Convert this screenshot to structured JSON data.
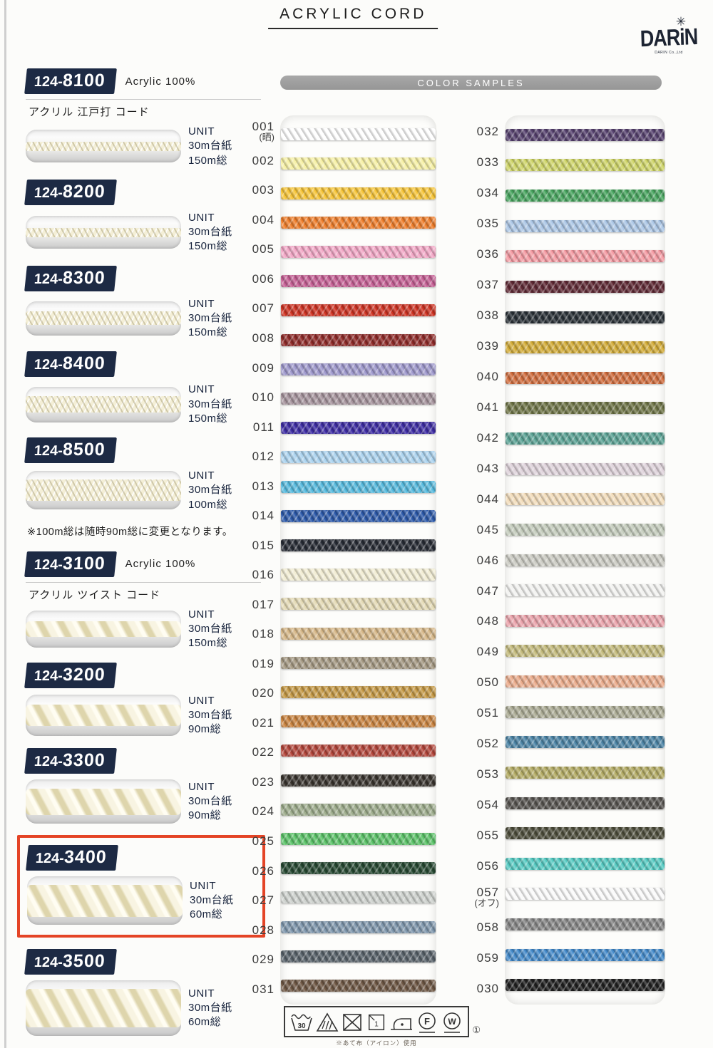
{
  "header": {
    "title": "ACRYLIC CORD",
    "logo_text": "DARiN",
    "logo_subtext": "DARIN Co.,Ltd",
    "logo_star": "✳"
  },
  "color_samples_bar": "COLOR SAMPLES",
  "note_between_groups": "※100m総は随時90m総に変更となります。",
  "products_group_a": [
    {
      "code_prefix": "124-",
      "code_main": "8100",
      "material": "Acrylic 100%",
      "subtitle": "アクリル 江戸打 コード",
      "unit_label": "UNIT",
      "unit_line1": "30m台紙",
      "unit_line2": "150m総",
      "cord_style": "braided b1",
      "highlighted": false
    },
    {
      "code_prefix": "124-",
      "code_main": "8200",
      "unit_label": "UNIT",
      "unit_line1": "30m台紙",
      "unit_line2": "150m総",
      "cord_style": "braided b1",
      "highlighted": false
    },
    {
      "code_prefix": "124-",
      "code_main": "8300",
      "unit_label": "UNIT",
      "unit_line1": "30m台紙",
      "unit_line2": "150m総",
      "cord_style": "braided b2",
      "highlighted": false
    },
    {
      "code_prefix": "124-",
      "code_main": "8400",
      "unit_label": "UNIT",
      "unit_line1": "30m台紙",
      "unit_line2": "150m総",
      "cord_style": "braided b3",
      "highlighted": false
    },
    {
      "code_prefix": "124-",
      "code_main": "8500",
      "unit_label": "UNIT",
      "unit_line1": "30m台紙",
      "unit_line2": "100m総",
      "cord_style": "braided b4",
      "highlighted": false
    }
  ],
  "products_group_b": [
    {
      "code_prefix": "124-",
      "code_main": "3100",
      "material": "Acrylic 100%",
      "subtitle": "アクリル ツイスト コード",
      "unit_label": "UNIT",
      "unit_line1": "30m台紙",
      "unit_line2": "150m総",
      "cord_style": "twisted t1",
      "highlighted": false
    },
    {
      "code_prefix": "124-",
      "code_main": "3200",
      "unit_label": "UNIT",
      "unit_line1": "30m台紙",
      "unit_line2": "90m総",
      "cord_style": "twisted t2",
      "highlighted": false
    },
    {
      "code_prefix": "124-",
      "code_main": "3300",
      "unit_label": "UNIT",
      "unit_line1": "30m台紙",
      "unit_line2": "90m総",
      "cord_style": "twisted t3",
      "highlighted": false
    },
    {
      "code_prefix": "124-",
      "code_main": "3400",
      "unit_label": "UNIT",
      "unit_line1": "30m台紙",
      "unit_line2": "60m総",
      "cord_style": "twisted t4",
      "highlighted": true
    },
    {
      "code_prefix": "124-",
      "code_main": "3500",
      "unit_label": "UNIT",
      "unit_line1": "30m台紙",
      "unit_line2": "60m総",
      "cord_style": "twisted t5",
      "highlighted": false
    }
  ],
  "color_samples_left": [
    {
      "label": "001",
      "note": "(晒)",
      "color": "#ffffff"
    },
    {
      "label": "002",
      "color": "#f6f0a4"
    },
    {
      "label": "003",
      "color": "#f6c437"
    },
    {
      "label": "004",
      "color": "#ee7d2a"
    },
    {
      "label": "005",
      "color": "#f2a6c5"
    },
    {
      "label": "006",
      "color": "#c45e93"
    },
    {
      "label": "007",
      "color": "#cd3222"
    },
    {
      "label": "008",
      "color": "#8e2a28"
    },
    {
      "label": "009",
      "color": "#9d97cb"
    },
    {
      "label": "010",
      "color": "#a4929b"
    },
    {
      "label": "011",
      "color": "#3c2ba2"
    },
    {
      "label": "012",
      "color": "#aad2ee"
    },
    {
      "label": "013",
      "color": "#55b9dd"
    },
    {
      "label": "014",
      "color": "#2b58a8"
    },
    {
      "label": "015",
      "color": "#262a33"
    },
    {
      "label": "016",
      "color": "#f1ecd2"
    },
    {
      "label": "017",
      "color": "#e3d9b4"
    },
    {
      "label": "018",
      "color": "#d5b687"
    },
    {
      "label": "019",
      "color": "#a39781"
    },
    {
      "label": "020",
      "color": "#c39743"
    },
    {
      "label": "021",
      "color": "#c8823e"
    },
    {
      "label": "022",
      "color": "#b2453a"
    },
    {
      "label": "023",
      "color": "#37322c"
    },
    {
      "label": "024",
      "color": "#9cab8b"
    },
    {
      "label": "025",
      "color": "#5ac167"
    },
    {
      "label": "026",
      "color": "#24462f"
    },
    {
      "label": "027",
      "color": "#ccd0cc"
    },
    {
      "label": "028",
      "color": "#7d95ab"
    },
    {
      "label": "029",
      "color": "#566068"
    },
    {
      "label": "031",
      "color": "#6d5643"
    }
  ],
  "color_samples_right": [
    {
      "label": "032",
      "color": "#55406d"
    },
    {
      "label": "033",
      "color": "#ced468"
    },
    {
      "label": "034",
      "color": "#47a45e"
    },
    {
      "label": "035",
      "color": "#abc6e5"
    },
    {
      "label": "036",
      "color": "#f49aa2"
    },
    {
      "label": "037",
      "color": "#5e2833"
    },
    {
      "label": "038",
      "color": "#272e34"
    },
    {
      "label": "039",
      "color": "#d2ab36"
    },
    {
      "label": "040",
      "color": "#d06c3c"
    },
    {
      "label": "041",
      "color": "#6d7345"
    },
    {
      "label": "042",
      "color": "#5aa294"
    },
    {
      "label": "043",
      "color": "#ded2da"
    },
    {
      "label": "044",
      "color": "#f2dcba"
    },
    {
      "label": "045",
      "color": "#c3cbbb"
    },
    {
      "label": "046",
      "color": "#cacac2"
    },
    {
      "label": "047",
      "color": "#f2f2f0"
    },
    {
      "label": "048",
      "color": "#eaa3ab"
    },
    {
      "label": "049",
      "color": "#c3ba7c"
    },
    {
      "label": "050",
      "color": "#eaab8b"
    },
    {
      "label": "051",
      "color": "#aaaa93"
    },
    {
      "label": "052",
      "color": "#4b83a4"
    },
    {
      "label": "053",
      "color": "#b2aa63"
    },
    {
      "label": "054",
      "color": "#55524e"
    },
    {
      "label": "055",
      "color": "#4c4c3a"
    },
    {
      "label": "056",
      "color": "#55cac2"
    },
    {
      "label": "057",
      "note": "(オフ)",
      "color": "#fafafa"
    },
    {
      "label": "058",
      "color": "#848484"
    },
    {
      "label": "059",
      "color": "#4389c9"
    },
    {
      "label": "030",
      "color": "#1e1e1e"
    }
  ],
  "care": {
    "wash_temp": "30",
    "f_label": "F",
    "w_label": "W",
    "footnote_mark": "①",
    "note": "※あて布（アイロン）使用"
  }
}
